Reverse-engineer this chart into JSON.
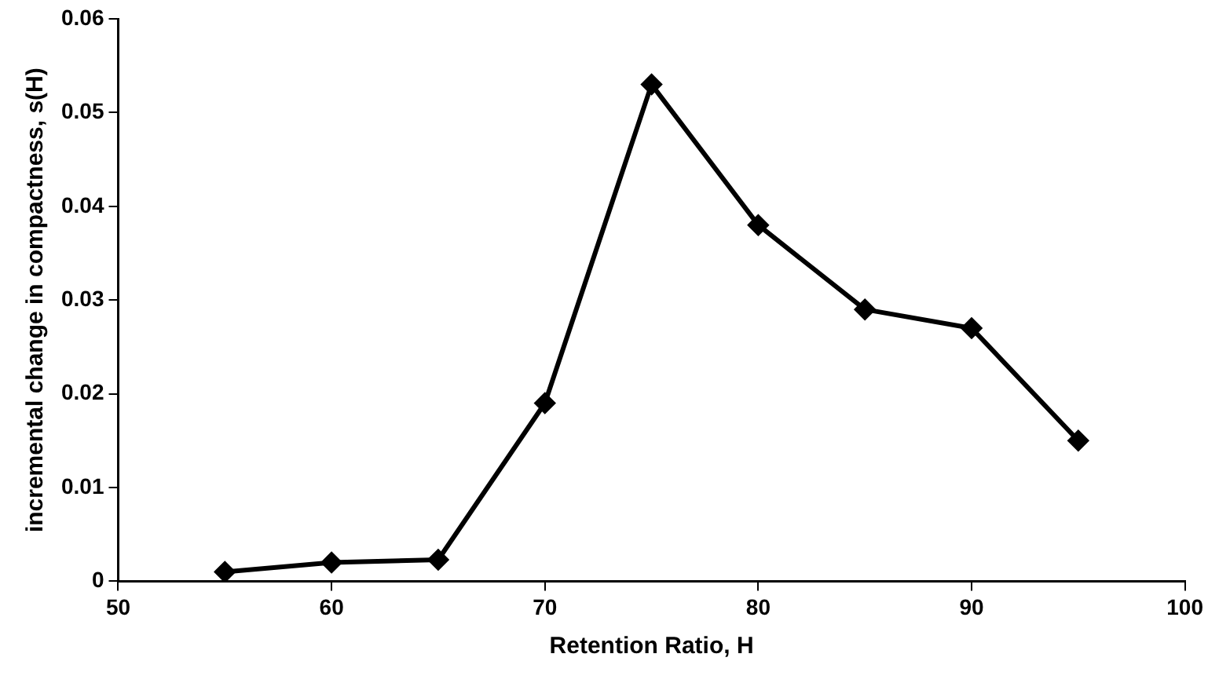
{
  "chart_data": {
    "type": "line",
    "xlabel": "Retention Ratio, H",
    "ylabel": "incremental change in compactness, s(H)",
    "x": [
      55,
      60,
      65,
      70,
      75,
      80,
      85,
      90,
      95
    ],
    "series": [
      {
        "color": "#000000",
        "values": [
          0.001,
          0.002,
          0.0023,
          0.019,
          0.053,
          0.038,
          0.029,
          0.027,
          0.015
        ]
      }
    ],
    "xlim": [
      50,
      100
    ],
    "xticks": [
      50,
      60,
      70,
      80,
      90,
      100
    ],
    "ylim": [
      0,
      0.06
    ],
    "yticks": [
      0,
      0.01,
      0.02,
      0.03,
      0.04,
      0.05,
      0.06
    ],
    "grid": false,
    "legend": false,
    "marker": "diamond",
    "line_style": "solid"
  }
}
